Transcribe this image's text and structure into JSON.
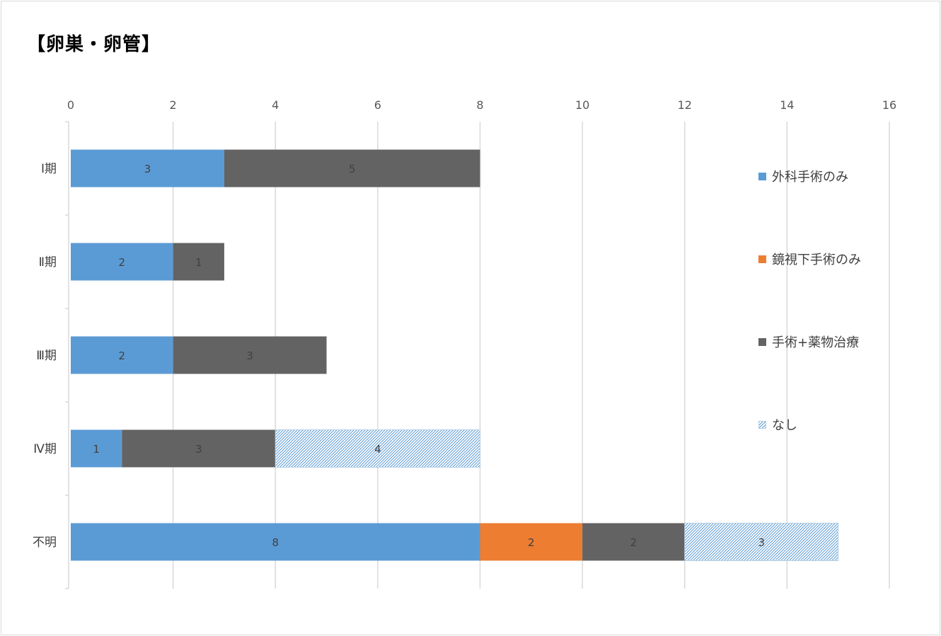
{
  "chart_data": {
    "type": "bar",
    "orientation": "horizontal",
    "stacked": true,
    "title": "【卵巣・卵管】",
    "categories": [
      "Ⅰ期",
      "Ⅱ期",
      "Ⅲ期",
      "Ⅳ期",
      "不明"
    ],
    "series": [
      {
        "name": "外科手術のみ",
        "color": "#5b9bd5",
        "pattern": "solid",
        "values": [
          3,
          2,
          2,
          1,
          8
        ]
      },
      {
        "name": "鏡視下手術のみ",
        "color": "#ed7d31",
        "pattern": "solid",
        "values": [
          0,
          0,
          0,
          0,
          2
        ]
      },
      {
        "name": "手術+薬物治療",
        "color": "#636363",
        "pattern": "solid",
        "values": [
          5,
          1,
          3,
          3,
          2
        ]
      },
      {
        "name": "なし",
        "color": "#5b9bd5",
        "pattern": "hatched",
        "values": [
          0,
          0,
          0,
          4,
          3
        ]
      }
    ],
    "xlim": [
      0,
      16
    ],
    "xticks": [
      "0",
      "2",
      "4",
      "6",
      "8",
      "10",
      "12",
      "14",
      "16"
    ],
    "axis_position": "top",
    "grid": true,
    "legend_position": "right",
    "data_labels": true
  }
}
